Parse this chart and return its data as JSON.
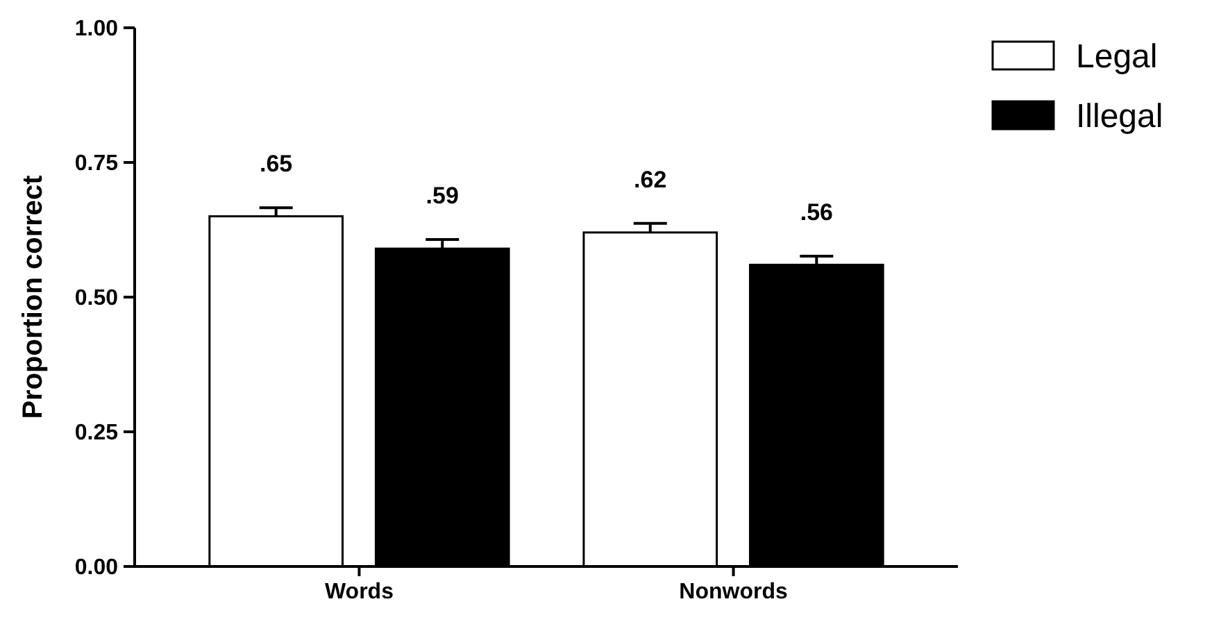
{
  "chart_data": {
    "type": "bar",
    "ylabel": "Proportion correct",
    "categories": [
      "Words",
      "Nonwords"
    ],
    "ylim": [
      0,
      1
    ],
    "yticks": [
      {
        "value": 0,
        "label": "0.00"
      },
      {
        "value": 0.25,
        "label": "0.25"
      },
      {
        "value": 0.5,
        "label": "0.50"
      },
      {
        "value": 0.75,
        "label": "0.75"
      },
      {
        "value": 1,
        "label": "1.00"
      }
    ],
    "legend": "top right",
    "grid": false,
    "series": [
      {
        "name": "Legal",
        "color": "#ffffff",
        "values": [
          0.65,
          0.62
        ],
        "value_labels": [
          ".65",
          ".62"
        ],
        "errors": [
          [
            0.65,
            0.666
          ],
          [
            0.62,
            0.637
          ]
        ]
      },
      {
        "name": "Illegal",
        "color": "#000000",
        "values": [
          0.59,
          0.56
        ],
        "value_labels": [
          ".59",
          ".56"
        ],
        "errors": [
          [
            0.59,
            0.607
          ],
          [
            0.56,
            0.576
          ]
        ]
      }
    ]
  }
}
